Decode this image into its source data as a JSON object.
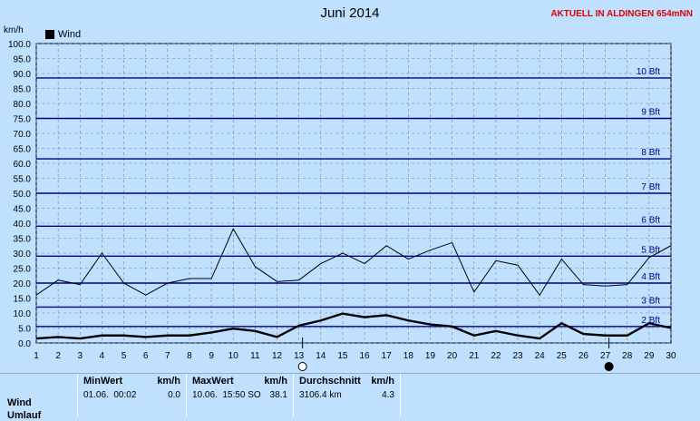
{
  "title": "Juni 2014",
  "station": "AKTUELL IN ALDINGEN 654mNN",
  "unit": "km/h",
  "legend": {
    "label": "Wind"
  },
  "chart_data": {
    "type": "line",
    "title": "Juni 2014",
    "ylabel": "km/h",
    "ylim": [
      0,
      100
    ],
    "x": [
      1,
      2,
      3,
      4,
      5,
      6,
      7,
      8,
      9,
      10,
      11,
      12,
      13,
      14,
      15,
      16,
      17,
      18,
      19,
      20,
      21,
      22,
      23,
      24,
      25,
      26,
      27,
      28,
      29,
      30
    ],
    "series": [
      {
        "name": "Wind",
        "style": "thick",
        "values": [
          1.5,
          2.0,
          1.5,
          2.5,
          2.5,
          2.0,
          2.5,
          2.5,
          3.5,
          4.8,
          4.0,
          2.0,
          5.8,
          7.5,
          9.8,
          8.6,
          9.3,
          7.5,
          6.2,
          5.5,
          2.5,
          4.0,
          2.5,
          1.5,
          6.6,
          3.0,
          2.5,
          2.5,
          6.6,
          5.0
        ]
      },
      {
        "style": "thin",
        "values": [
          16.0,
          21.0,
          19.5,
          30.0,
          20.0,
          16.0,
          20.0,
          21.5,
          21.5,
          38.1,
          25.5,
          20.5,
          21.0,
          26.5,
          30.0,
          26.5,
          32.5,
          28.0,
          31.0,
          33.5,
          17.0,
          27.5,
          26.0,
          16.0,
          28.0,
          19.5,
          19.0,
          19.5,
          28.5,
          32.5
        ]
      }
    ],
    "beaufort": [
      {
        "label": "2 Bft",
        "value": 5.5
      },
      {
        "label": "3 Bft",
        "value": 12
      },
      {
        "label": "4 Bft",
        "value": 20
      },
      {
        "label": "5 Bft",
        "value": 29
      },
      {
        "label": "6 Bft",
        "value": 39
      },
      {
        "label": "7 Bft",
        "value": 50
      },
      {
        "label": "8 Bft",
        "value": 61.5
      },
      {
        "label": "9 Bft",
        "value": 75
      },
      {
        "label": "10 Bft",
        "value": 88.5
      }
    ],
    "yticks": [
      "0.0",
      "5.0",
      "10.0",
      "15.0",
      "20.0",
      "25.0",
      "30.0",
      "35.0",
      "40.0",
      "45.0",
      "50.0",
      "55.0",
      "60.0",
      "65.0",
      "70.0",
      "75.0",
      "80.0",
      "85.0",
      "90.0",
      "95.0",
      "100.0"
    ],
    "moon": [
      {
        "day": 13,
        "phase": "full-moon"
      },
      {
        "day": 27,
        "phase": "new-moon"
      }
    ],
    "grid": true,
    "legend_position": "top-left"
  },
  "stats": {
    "row_label": "Wind",
    "row_label2": "Umlauf",
    "min": {
      "title": "MinWert",
      "unit": "km/h",
      "date": "01.06.",
      "time": "00:02",
      "value": "0.0"
    },
    "max": {
      "title": "MaxWert",
      "unit": "km/h",
      "date": "10.06.",
      "time": "15:50",
      "dir": "SO",
      "value": "38.1"
    },
    "avg": {
      "title": "Durchschnitt",
      "unit": "km/h",
      "distance": "3106.4 km",
      "value": "4.3"
    }
  },
  "colors": {
    "background": "#c0e0ff",
    "beaufort": "#00008b",
    "grid": "#808080",
    "station": "#e00000"
  }
}
